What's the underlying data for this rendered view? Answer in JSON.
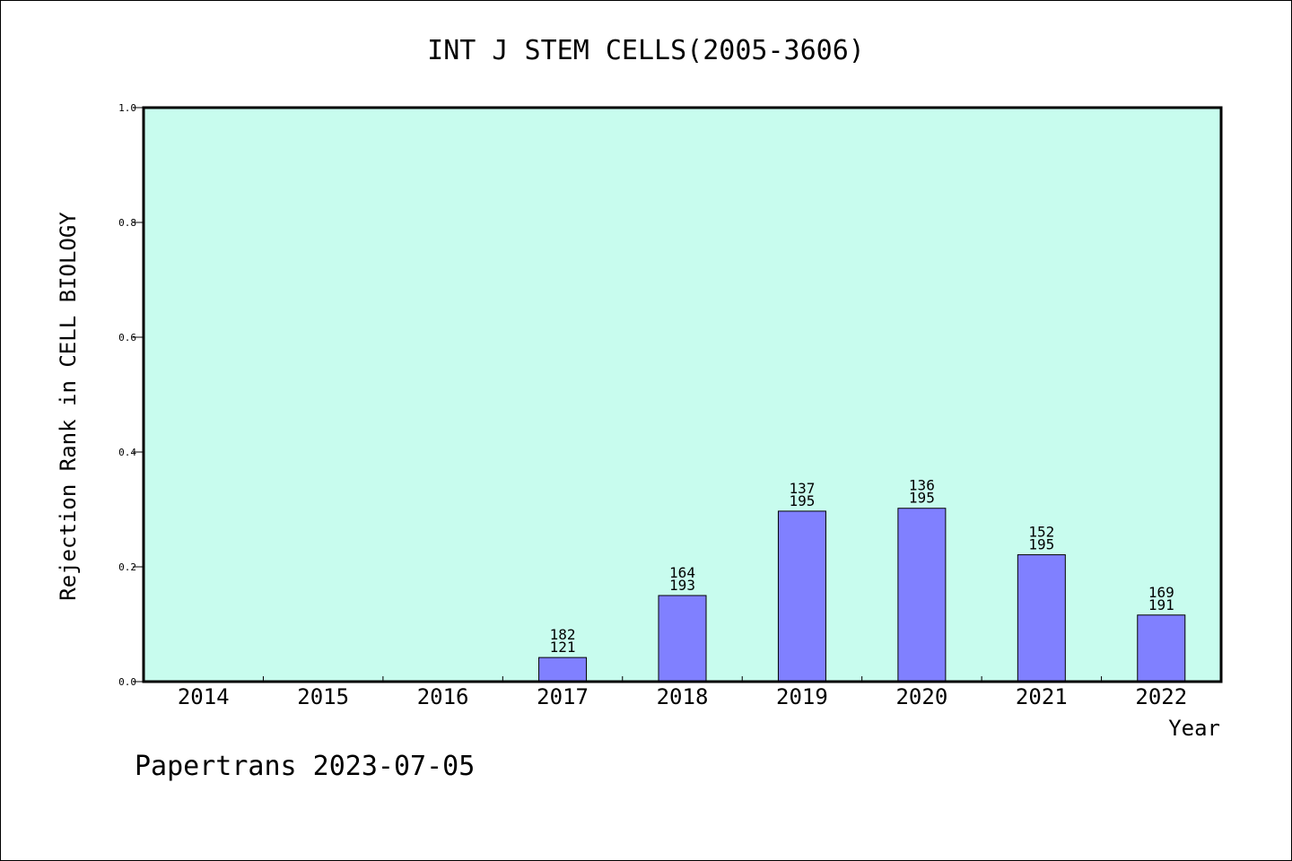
{
  "chart_data": {
    "type": "bar",
    "title": "INT J STEM CELLS(2005-3606)",
    "xlabel": "Year",
    "ylabel": "Rejection Rank in CELL BIOLOGY",
    "categories": [
      "2014",
      "2015",
      "2016",
      "2017",
      "2018",
      "2019",
      "2020",
      "2021",
      "2022"
    ],
    "values": [
      0,
      0,
      0,
      0.042,
      0.15,
      0.297,
      0.302,
      0.221,
      0.116
    ],
    "bar_labels": [
      null,
      null,
      null,
      [
        "182",
        "121"
      ],
      [
        "164",
        "193"
      ],
      [
        "137",
        "195"
      ],
      [
        "136",
        "195"
      ],
      [
        "152",
        "195"
      ],
      [
        "169",
        "191"
      ]
    ],
    "ylim": [
      0,
      1.0
    ],
    "yticks": [
      "0.0",
      "0.2",
      "0.4",
      "0.6",
      "0.8",
      "1.0"
    ],
    "grid": false,
    "colors": {
      "plot_background": "#c8fcee",
      "bar_fill": "#8080ff",
      "bar_stroke": "#000000"
    }
  },
  "footer": "Papertrans 2023-07-05"
}
